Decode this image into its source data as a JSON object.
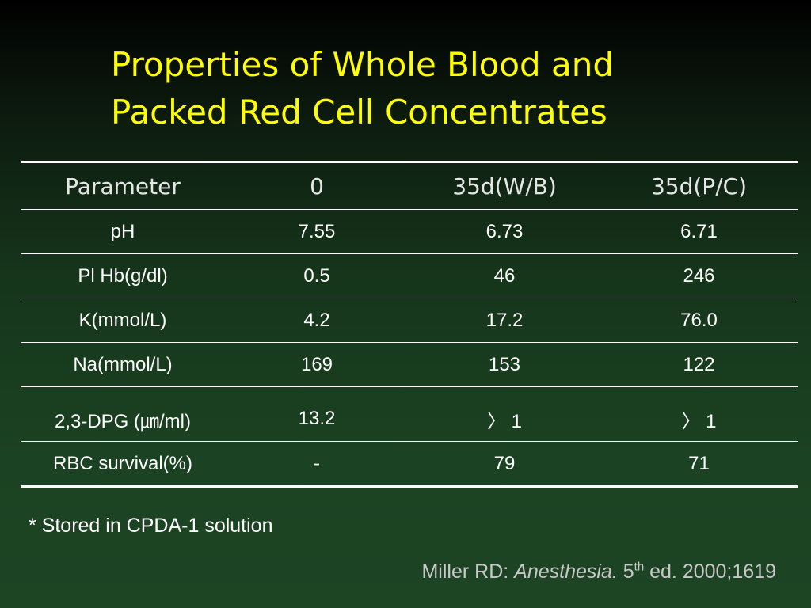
{
  "title": {
    "line1": "Properties of Whole Blood and",
    "line2": "Packed Red Cell Concentrates"
  },
  "table": {
    "headers": [
      "Parameter",
      "0",
      "35d(W/B)",
      "35d(P/C)"
    ],
    "rows": [
      [
        "pH",
        "7.55",
        "6.73",
        "6.71"
      ],
      [
        "Pl Hb(g/dl)",
        "0.5",
        "46",
        "246"
      ],
      [
        "K(mmol/L)",
        "4.2",
        "17.2",
        "76.0"
      ],
      [
        "Na(mmol/L)",
        "169",
        "153",
        "122"
      ],
      [
        "2,3-DPG (㎛/ml)",
        "13.2",
        "〉 1",
        "〉 1"
      ],
      [
        "RBC survival(%)",
        "-",
        "79",
        "71"
      ]
    ]
  },
  "footnote": "* Stored in CPDA-1 solution",
  "citation": {
    "author": "Miller RD: ",
    "book": "Anesthesia.",
    "edition_number": " 5",
    "edition_sup": "th",
    "rest": " ed. 2000;1619"
  }
}
